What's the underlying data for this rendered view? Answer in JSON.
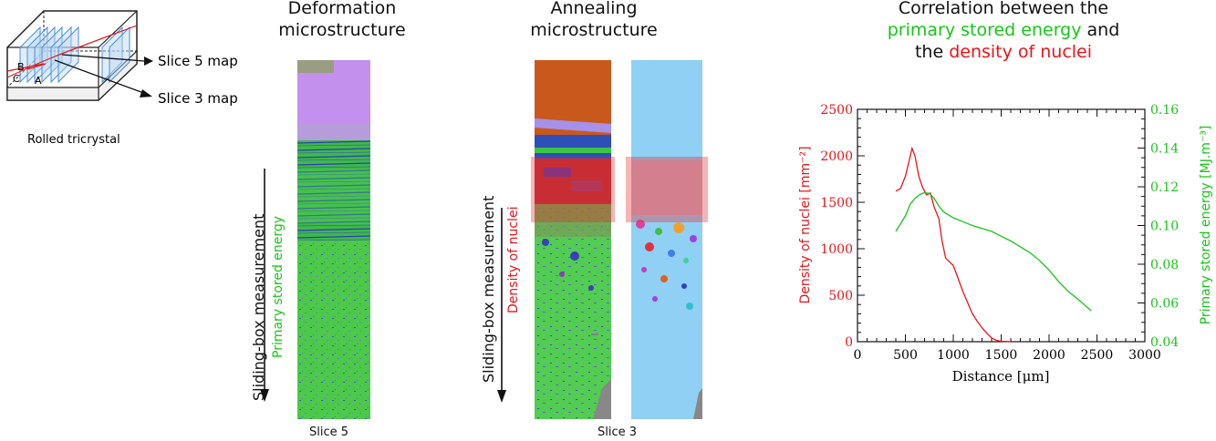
{
  "schematic": {
    "label_B": "B",
    "label_C": "C",
    "label_A": "A",
    "slice5_map": "Slice 5 map",
    "slice3_map": "Slice 3 map",
    "caption": "Rolled tricrystal"
  },
  "deformation": {
    "title_line1": "Deformation",
    "title_line2": "microstructure",
    "arrow_label_1": "Sliding-box measurement",
    "arrow_label_2": "Primary stored energy",
    "slice_label": "Slice 5"
  },
  "annealing": {
    "title_line1": "Annealing",
    "title_line2": "microstructure",
    "arrow_label_1": "Sliding-box measurement",
    "arrow_label_2": "Density of nuclei",
    "slice_label": "Slice 3"
  },
  "correlation": {
    "title_part1": "Correlation between the",
    "title_green": "primary stored energy",
    "title_and": " and",
    "title_the": "the ",
    "title_red": "density of nuclei"
  },
  "colors": {
    "red": "#e8141a",
    "green": "#19c419",
    "purple": "#c98ff0",
    "blue_green_map": "#3bbf3b",
    "light_blue": "#8fd0f4",
    "orange": "#c9571c"
  },
  "chart_data": {
    "type": "line",
    "xlabel": "Distance [μm]",
    "ylabel_left": "Density of nuclei [mm⁻²]",
    "ylabel_right": "Primary stored energy [MJ.m⁻³]",
    "xlim": [
      0,
      3000
    ],
    "ylim_left": [
      0,
      2500
    ],
    "ylim_right": [
      0.04,
      0.16
    ],
    "x_ticks": [
      "0",
      "500",
      "1000",
      "1500",
      "2000",
      "2500",
      "3000"
    ],
    "y_ticks_left": [
      "0",
      "500",
      "1000",
      "1500",
      "2000",
      "2500"
    ],
    "y_ticks_right": [
      "0.04",
      "0.06",
      "0.08",
      "0.10",
      "0.12",
      "0.14",
      "0.16"
    ],
    "series": [
      {
        "axis": "left",
        "color": "#e8141a",
        "x": [
          400,
          450,
          500,
          540,
          570,
          600,
          640,
          680,
          720,
          760,
          800,
          850,
          880,
          920,
          960,
          1000,
          1050,
          1100,
          1150,
          1200,
          1250,
          1300,
          1350,
          1400,
          1450,
          1500,
          1600
        ],
        "y": [
          1620,
          1650,
          1780,
          1950,
          2080,
          2000,
          1780,
          1660,
          1580,
          1600,
          1450,
          1320,
          1100,
          900,
          860,
          820,
          680,
          540,
          420,
          300,
          220,
          150,
          90,
          40,
          15,
          5,
          0
        ]
      },
      {
        "axis": "right",
        "color": "#19c419",
        "x": [
          400,
          450,
          500,
          550,
          600,
          650,
          700,
          750,
          800,
          850,
          900,
          1000,
          1100,
          1200,
          1300,
          1400,
          1500,
          1600,
          1700,
          1800,
          1900,
          2000,
          2100,
          2200,
          2300,
          2440
        ],
        "y": [
          0.097,
          0.101,
          0.105,
          0.111,
          0.114,
          0.116,
          0.117,
          0.1165,
          0.114,
          0.11,
          0.107,
          0.104,
          0.102,
          0.1,
          0.0985,
          0.097,
          0.0945,
          0.092,
          0.089,
          0.086,
          0.082,
          0.077,
          0.071,
          0.066,
          0.062,
          0.056
        ]
      }
    ]
  }
}
